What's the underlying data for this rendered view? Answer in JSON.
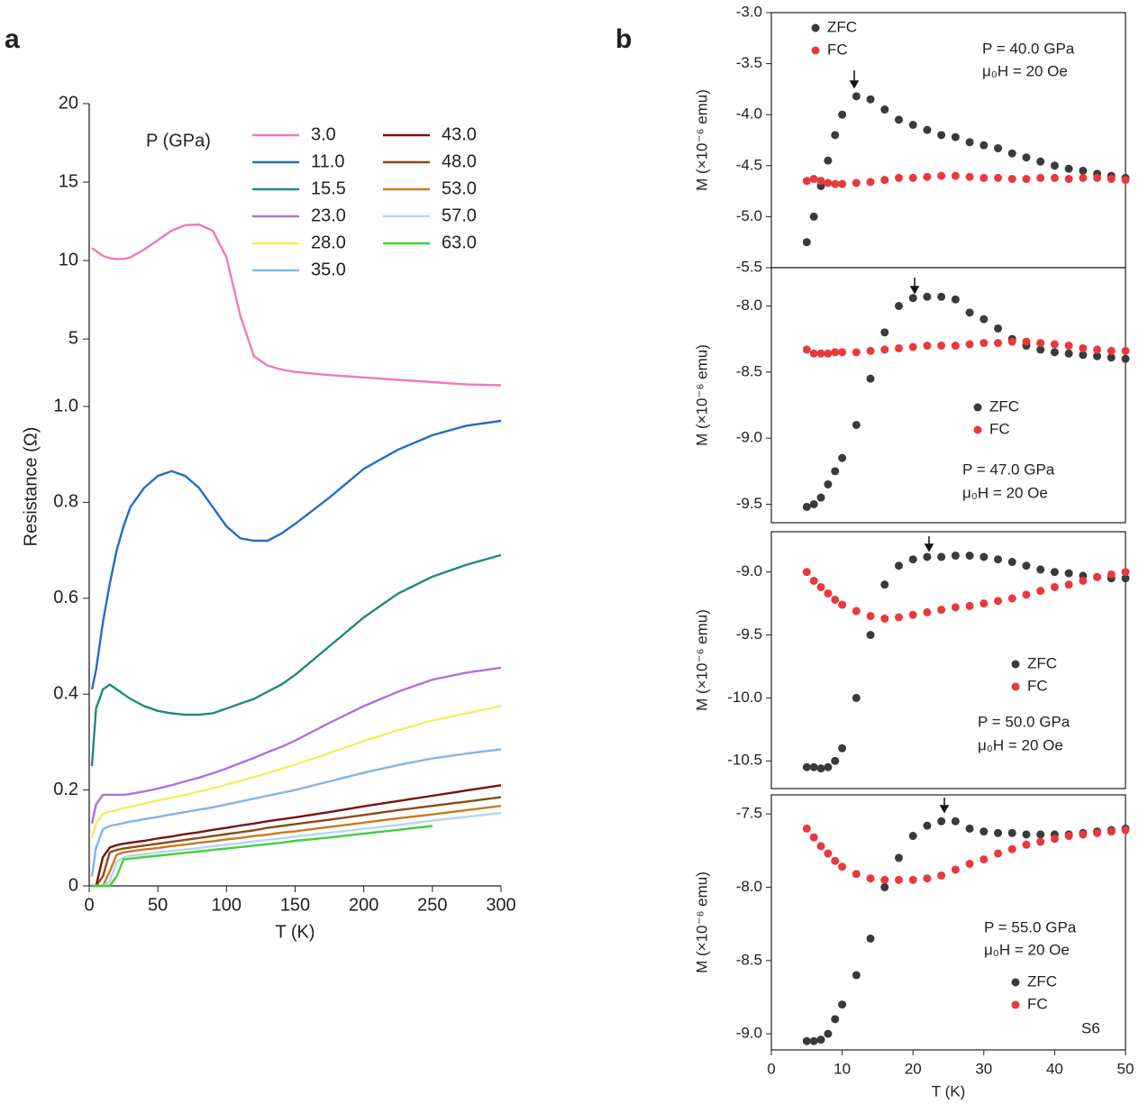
{
  "chart_data": [
    {
      "type": "line",
      "panel_label": "a",
      "xlabel": "T (K)",
      "ylabel": "Resistance (Ω)",
      "legend_title": "P (GPa)",
      "legend": "top-right",
      "xlim": [
        0,
        300
      ],
      "xticks": [
        0,
        50,
        100,
        150,
        200,
        250,
        300
      ],
      "ylim": [
        0,
        1
      ],
      "yticks": [
        0,
        0.2,
        0.4,
        0.6,
        0.8,
        {
          "value": 1,
          "label": "1.0"
        }
      ],
      "y2lim": [
        0.7,
        20
      ],
      "y2ticks": [
        5,
        10,
        15,
        20
      ],
      "x": [
        2,
        5,
        10,
        15,
        20,
        25,
        30,
        40,
        50,
        60,
        70,
        80,
        90,
        100,
        110,
        120,
        130,
        140,
        150,
        175,
        200,
        225,
        250,
        275,
        300
      ],
      "series": [
        {
          "name": "3.0",
          "color": "#f07ab8",
          "axis": "y2",
          "values": [
            10.8,
            10.6,
            10.3,
            10.15,
            10.1,
            10.1,
            10.2,
            10.7,
            11.3,
            11.9,
            12.25,
            12.3,
            11.9,
            10.2,
            6.5,
            3.9,
            3.3,
            3.05,
            2.9,
            2.7,
            2.55,
            2.4,
            2.25,
            2.1,
            2.05
          ]
        },
        {
          "name": "11.0",
          "color": "#1f6fc6",
          "values": [
            0.41,
            0.45,
            0.55,
            0.63,
            0.7,
            0.75,
            0.79,
            0.83,
            0.855,
            0.865,
            0.855,
            0.83,
            0.79,
            0.75,
            0.725,
            0.72,
            0.72,
            0.735,
            0.755,
            0.81,
            0.87,
            0.91,
            0.94,
            0.96,
            0.97
          ]
        },
        {
          "name": "15.5",
          "color": "#1f8a7a",
          "values": [
            0.25,
            0.37,
            0.41,
            0.42,
            0.41,
            0.4,
            0.39,
            0.375,
            0.365,
            0.36,
            0.357,
            0.357,
            0.36,
            0.37,
            0.38,
            0.39,
            0.405,
            0.42,
            0.44,
            0.5,
            0.56,
            0.61,
            0.645,
            0.67,
            0.69
          ]
        },
        {
          "name": "23.0",
          "color": "#b070e0",
          "values": [
            0.13,
            0.17,
            0.19,
            0.19,
            0.19,
            0.19,
            0.192,
            0.197,
            0.203,
            0.21,
            0.218,
            0.226,
            0.235,
            0.245,
            0.256,
            0.267,
            0.279,
            0.29,
            0.303,
            0.34,
            0.375,
            0.405,
            0.43,
            0.445,
            0.455
          ]
        },
        {
          "name": "28.0",
          "color": "#f2ee5a",
          "values": [
            0.1,
            0.13,
            0.15,
            0.155,
            0.158,
            0.162,
            0.165,
            0.172,
            0.178,
            0.184,
            0.19,
            0.197,
            0.204,
            0.211,
            0.219,
            0.227,
            0.235,
            0.244,
            0.253,
            0.277,
            0.302,
            0.325,
            0.345,
            0.36,
            0.375
          ]
        },
        {
          "name": "35.0",
          "color": "#7fb6ea",
          "values": [
            0.02,
            0.08,
            0.118,
            0.125,
            0.128,
            0.131,
            0.134,
            0.139,
            0.144,
            0.149,
            0.154,
            0.159,
            0.164,
            0.17,
            0.176,
            0.182,
            0.188,
            0.194,
            0.2,
            0.218,
            0.236,
            0.252,
            0.266,
            0.276,
            0.285
          ]
        },
        {
          "name": "43.0",
          "color": "#7a1010",
          "values": [
            0,
            0,
            0.06,
            0.08,
            0.085,
            0.088,
            0.09,
            0.094,
            0.099,
            0.103,
            0.108,
            0.112,
            0.117,
            0.121,
            0.126,
            0.13,
            0.135,
            0.139,
            0.143,
            0.154,
            0.166,
            0.177,
            0.188,
            0.199,
            0.21
          ]
        },
        {
          "name": "48.0",
          "color": "#8b4a1a",
          "values": [
            0,
            0,
            0.02,
            0.07,
            0.075,
            0.078,
            0.08,
            0.084,
            0.088,
            0.092,
            0.096,
            0.1,
            0.104,
            0.108,
            0.112,
            0.116,
            0.121,
            0.125,
            0.129,
            0.138,
            0.148,
            0.158,
            0.167,
            0.176,
            0.185
          ]
        },
        {
          "name": "53.0",
          "color": "#c87a20",
          "values": [
            0,
            0,
            0,
            0.03,
            0.065,
            0.07,
            0.072,
            0.076,
            0.079,
            0.083,
            0.086,
            0.09,
            0.093,
            0.097,
            0.1,
            0.104,
            0.107,
            0.111,
            0.114,
            0.123,
            0.132,
            0.141,
            0.149,
            0.158,
            0.167
          ]
        },
        {
          "name": "57.0",
          "color": "#b8d4f0",
          "values": [
            0,
            0,
            0,
            0.01,
            0.05,
            0.06,
            0.063,
            0.066,
            0.07,
            0.073,
            0.076,
            0.079,
            0.083,
            0.086,
            0.089,
            0.093,
            0.096,
            0.099,
            0.103,
            0.111,
            0.119,
            0.127,
            0.136,
            0.144,
            0.152
          ]
        },
        {
          "name": "63.0",
          "color": "#40d040",
          "values": [
            0,
            0,
            0,
            0,
            0.02,
            0.055,
            0.057,
            0.06,
            0.063,
            0.066,
            0.069,
            0.072,
            0.075,
            0.078,
            0.081,
            0.084,
            0.087,
            0.09,
            0.094,
            0.101,
            0.109,
            0.117,
            0.125,
            null,
            null
          ]
        }
      ]
    },
    {
      "type": "scatter",
      "panel_label": "b",
      "ylabel": "M (×10⁻⁶ emu)",
      "legend": "top-left",
      "annotations": [
        "P = 40.0 GPa",
        "μ₀H = 20 Oe"
      ],
      "xlim": [
        0,
        50
      ],
      "ylim": [
        -5.5,
        -3.0
      ],
      "yticks": [
        {
          "value": -3,
          "label": "-3.0"
        },
        -3.5,
        {
          "value": -4,
          "label": "-4.0"
        },
        -4.5,
        {
          "value": -5,
          "label": "-5.0"
        },
        -5.5
      ],
      "x": [
        5,
        6,
        7,
        8,
        9,
        10,
        12,
        14,
        16,
        18,
        20,
        22,
        24,
        26,
        28,
        30,
        32,
        34,
        36,
        38,
        40,
        42,
        44,
        46,
        48,
        50
      ],
      "series": [
        {
          "name": "ZFC",
          "color": "#3a3a3a",
          "values": [
            -5.25,
            -5.0,
            -4.7,
            -4.45,
            -4.2,
            -4.0,
            -3.82,
            -3.85,
            -3.95,
            -4.05,
            -4.1,
            -4.15,
            -4.2,
            -4.22,
            -4.27,
            -4.3,
            -4.33,
            -4.38,
            -4.42,
            -4.46,
            -4.5,
            -4.53,
            -4.55,
            -4.58,
            -4.6,
            -4.62
          ]
        },
        {
          "name": "FC",
          "color": "#e8393c",
          "values": [
            -4.65,
            -4.63,
            -4.65,
            -4.67,
            -4.68,
            -4.68,
            -4.67,
            -4.66,
            -4.64,
            -4.62,
            -4.62,
            -4.61,
            -4.6,
            -4.6,
            -4.61,
            -4.62,
            -4.62,
            -4.63,
            -4.63,
            -4.62,
            -4.62,
            -4.63,
            -4.62,
            -4.62,
            -4.63,
            -4.64
          ]
        }
      ]
    },
    {
      "type": "scatter",
      "ylabel": "M (×10⁻⁶ emu)",
      "legend": "center",
      "annotations": [
        "P = 47.0 GPa",
        "μ₀H = 20 Oe"
      ],
      "xlim": [
        0,
        50
      ],
      "ylim": [
        -9.64,
        -7.71
      ],
      "yticks": [
        {
          "value": -8,
          "label": "-8.0"
        },
        -8.5,
        {
          "value": -9,
          "label": "-9.0"
        },
        -9.5
      ],
      "x": [
        5,
        6,
        7,
        8,
        9,
        10,
        12,
        14,
        16,
        18,
        20,
        22,
        24,
        26,
        28,
        30,
        32,
        34,
        36,
        38,
        40,
        42,
        44,
        46,
        48,
        50
      ],
      "series": [
        {
          "name": "ZFC",
          "color": "#3a3a3a",
          "values": [
            -9.52,
            -9.5,
            -9.45,
            -9.35,
            -9.25,
            -9.15,
            -8.9,
            -8.55,
            -8.2,
            -8.0,
            -7.94,
            -7.93,
            -7.93,
            -7.95,
            -8.05,
            -8.1,
            -8.17,
            -8.25,
            -8.3,
            -8.33,
            -8.35,
            -8.36,
            -8.37,
            -8.38,
            -8.39,
            -8.4
          ]
        },
        {
          "name": "FC",
          "color": "#e8393c",
          "values": [
            -8.33,
            -8.36,
            -8.36,
            -8.36,
            -8.35,
            -8.35,
            -8.35,
            -8.34,
            -8.33,
            -8.32,
            -8.31,
            -8.3,
            -8.3,
            -8.3,
            -8.29,
            -8.28,
            -8.28,
            -8.27,
            -8.27,
            -8.28,
            -8.29,
            -8.3,
            -8.32,
            -8.33,
            -8.34,
            -8.34
          ]
        }
      ]
    },
    {
      "type": "scatter",
      "ylabel": "M (×10⁻⁶ emu)",
      "legend": "center",
      "annotations": [
        "P = 50.0 GPa",
        "μ₀H = 20 Oe"
      ],
      "xlim": [
        0,
        50
      ],
      "ylim": [
        -10.72,
        -8.68
      ],
      "yticks": [
        {
          "value": -9,
          "label": "-9.0"
        },
        -9.5,
        {
          "value": -10,
          "label": "-10.0"
        },
        -10.5
      ],
      "x": [
        5,
        6,
        7,
        8,
        9,
        10,
        12,
        14,
        16,
        18,
        20,
        22,
        24,
        26,
        28,
        30,
        32,
        34,
        36,
        38,
        40,
        42,
        44,
        46,
        48,
        50
      ],
      "series": [
        {
          "name": "ZFC",
          "color": "#3a3a3a",
          "values": [
            -10.55,
            -10.55,
            -10.56,
            -10.55,
            -10.5,
            -10.4,
            -10.0,
            -9.5,
            -9.1,
            -8.95,
            -8.9,
            -8.88,
            -8.88,
            -8.87,
            -8.87,
            -8.88,
            -8.9,
            -8.92,
            -8.95,
            -8.98,
            -9.0,
            -9.01,
            -9.03,
            -9.04,
            -9.05,
            -9.05
          ]
        },
        {
          "name": "FC",
          "color": "#e8393c",
          "values": [
            -9.0,
            -9.07,
            -9.12,
            -9.17,
            -9.22,
            -9.26,
            -9.31,
            -9.35,
            -9.37,
            -9.36,
            -9.34,
            -9.32,
            -9.3,
            -9.28,
            -9.27,
            -9.25,
            -9.23,
            -9.21,
            -9.18,
            -9.15,
            -9.12,
            -9.1,
            -9.07,
            -9.04,
            -9.02,
            -9.0
          ]
        }
      ]
    },
    {
      "type": "scatter",
      "ylabel": "M (×10⁻⁶ emu)",
      "xlabel": "T (K)",
      "legend": "bottom-right",
      "annotations": [
        "P = 55.0 GPa",
        "μ₀H = 20 Oe",
        "S6"
      ],
      "xlim": [
        0,
        50
      ],
      "xticks": [
        0,
        10,
        20,
        30,
        40,
        50
      ],
      "ylim": [
        -9.11,
        -7.37
      ],
      "yticks": [
        -7.5,
        {
          "value": -8,
          "label": "-8.0"
        },
        -8.5,
        {
          "value": -9,
          "label": "-9.0"
        }
      ],
      "x": [
        5,
        6,
        7,
        8,
        9,
        10,
        12,
        14,
        16,
        18,
        20,
        22,
        24,
        26,
        28,
        30,
        32,
        34,
        36,
        38,
        40,
        42,
        44,
        46,
        48,
        50
      ],
      "series": [
        {
          "name": "ZFC",
          "color": "#3a3a3a",
          "values": [
            -9.05,
            -9.05,
            -9.04,
            -9.0,
            -8.9,
            -8.8,
            -8.6,
            -8.35,
            -8.0,
            -7.8,
            -7.65,
            -7.58,
            -7.55,
            -7.55,
            -7.6,
            -7.62,
            -7.63,
            -7.63,
            -7.64,
            -7.64,
            -7.64,
            -7.64,
            -7.63,
            -7.62,
            -7.61,
            -7.6
          ]
        },
        {
          "name": "FC",
          "color": "#e8393c",
          "values": [
            -7.6,
            -7.66,
            -7.72,
            -7.77,
            -7.82,
            -7.86,
            -7.91,
            -7.94,
            -7.95,
            -7.95,
            -7.95,
            -7.94,
            -7.92,
            -7.88,
            -7.84,
            -7.81,
            -7.77,
            -7.74,
            -7.71,
            -7.69,
            -7.67,
            -7.65,
            -7.64,
            -7.63,
            -7.62,
            -7.61
          ]
        }
      ]
    }
  ]
}
